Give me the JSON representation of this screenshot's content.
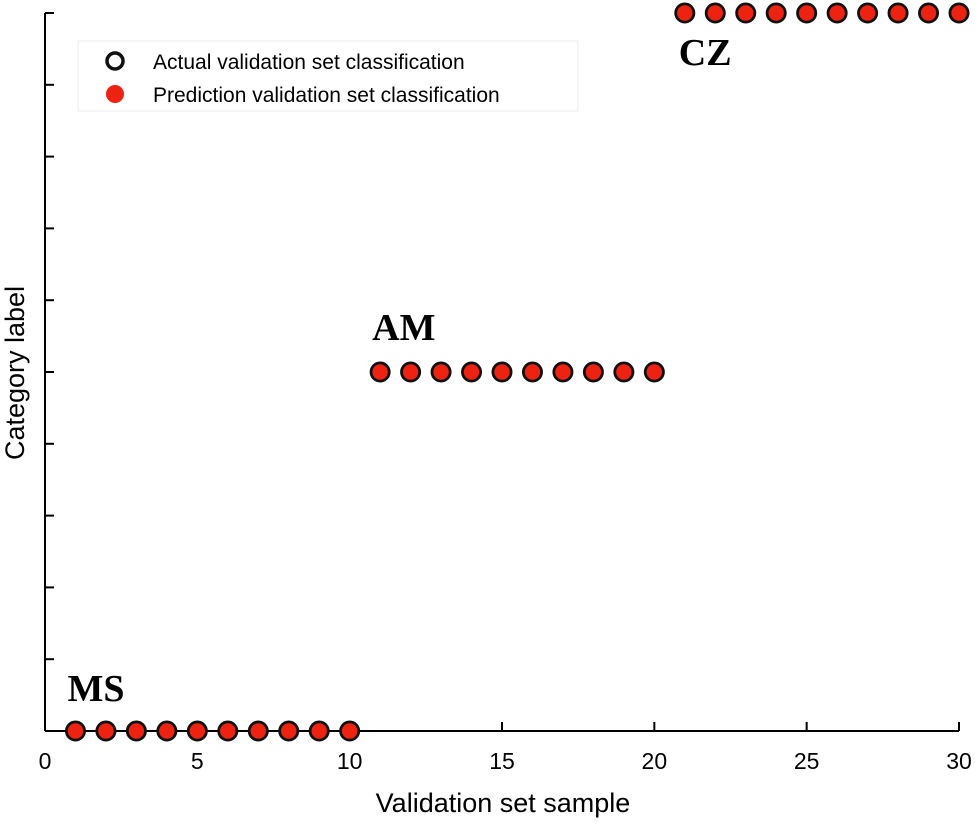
{
  "chart_data": {
    "type": "scatter",
    "title": "",
    "xlabel": "Validation set sample",
    "ylabel": "Category label",
    "xlim": [
      0,
      30
    ],
    "ylim": [
      0,
      10
    ],
    "x_ticks": [
      0,
      5,
      10,
      15,
      20,
      25,
      30
    ],
    "y_tick_count": 10,
    "y_tick_labels_shown": false,
    "grid": false,
    "legend_position": "top-left",
    "colors": {
      "prediction_fill": "#ee2211",
      "marker_edge": "#111111",
      "axis": "#000000"
    },
    "series": [
      {
        "name": "Actual validation set classification",
        "marker": "hollow-circle",
        "x": [
          1,
          2,
          3,
          4,
          5,
          6,
          7,
          8,
          9,
          10,
          11,
          12,
          13,
          14,
          15,
          16,
          17,
          18,
          19,
          20,
          21,
          22,
          23,
          24,
          25,
          26,
          27,
          28,
          29,
          30
        ],
        "y": [
          0,
          0,
          0,
          0,
          0,
          0,
          0,
          0,
          0,
          0,
          5,
          5,
          5,
          5,
          5,
          5,
          5,
          5,
          5,
          5,
          10,
          10,
          10,
          10,
          10,
          10,
          10,
          10,
          10,
          10
        ]
      },
      {
        "name": "Prediction validation set classification",
        "marker": "filled-circle",
        "x": [
          1,
          2,
          3,
          4,
          5,
          6,
          7,
          8,
          9,
          10,
          11,
          12,
          13,
          14,
          15,
          16,
          17,
          18,
          19,
          20,
          21,
          22,
          23,
          24,
          25,
          26,
          27,
          28,
          29,
          30
        ],
        "y": [
          0,
          0,
          0,
          0,
          0,
          0,
          0,
          0,
          0,
          0,
          5,
          5,
          5,
          5,
          5,
          5,
          5,
          5,
          5,
          5,
          10,
          10,
          10,
          10,
          10,
          10,
          10,
          10,
          10,
          10
        ]
      }
    ],
    "annotations": [
      {
        "text": "MS",
        "x": 1,
        "y": 0
      },
      {
        "text": "AM",
        "x": 11,
        "y": 5
      },
      {
        "text": "CZ",
        "x": 21,
        "y": 10
      }
    ]
  }
}
